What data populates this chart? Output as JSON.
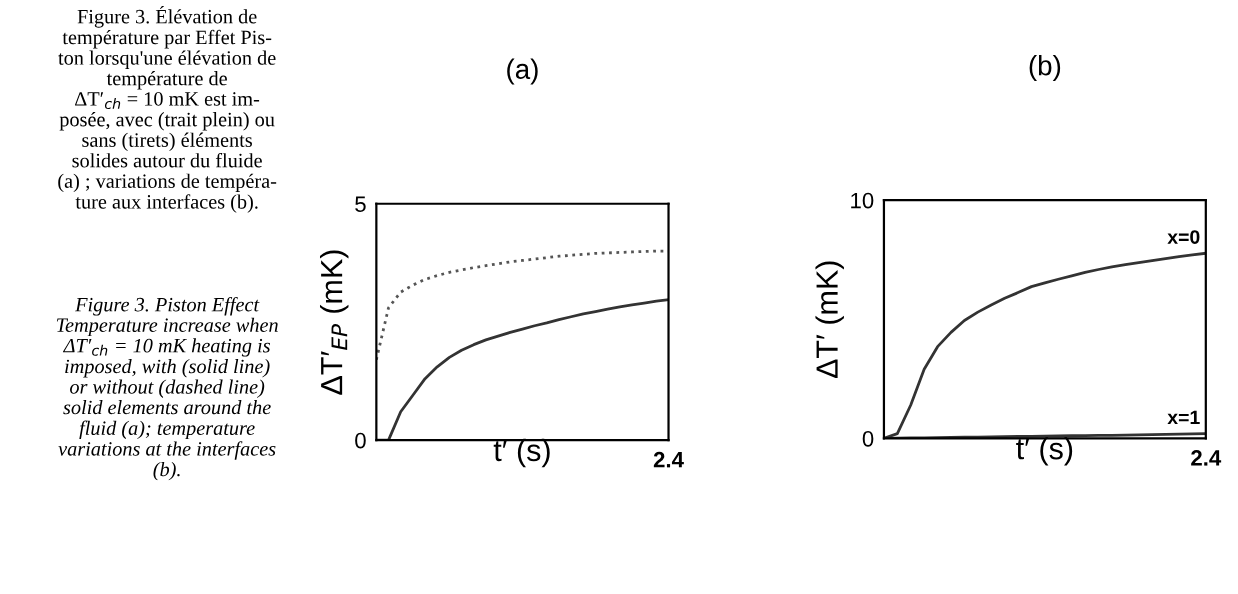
{
  "chart_data": [
    {
      "type": "line",
      "title": "(a)",
      "xlabel": "t′ (s)",
      "ylabel": "ΔT′$_{EP}$ (mK)",
      "categories": [
        null,
        null,
        null,
        null,
        null,
        null,
        null,
        null,
        null,
        null,
        null,
        null,
        null,
        null,
        null,
        null,
        null,
        null,
        null,
        null,
        null,
        null,
        null,
        null,
        null
      ],
      "ylim": [
        0,
        5
      ],
      "yticks": [
        0,
        5
      ],
      "grid": false,
      "legend": false,
      "series": [
        {
          "color": "#333333",
          "line_style": "solid",
          "values": [
            0,
            0,
            0.6,
            0.95,
            1.3,
            1.55,
            1.75,
            1.9,
            2.02,
            2.12,
            2.2,
            2.28,
            2.35,
            2.42,
            2.48,
            2.55,
            2.61,
            2.67,
            2.72,
            2.77,
            2.82,
            2.86,
            2.9,
            2.94,
            2.97
          ]
        },
        {
          "color": "#555555",
          "line_style": "dotted",
          "values": [
            1.7,
            2.8,
            3.13,
            3.28,
            3.4,
            3.48,
            3.55,
            3.6,
            3.65,
            3.69,
            3.73,
            3.77,
            3.8,
            3.83,
            3.86,
            3.89,
            3.91,
            3.93,
            3.95,
            3.96,
            3.97,
            3.98,
            3.99,
            4.0,
            4.0
          ]
        }
      ],
      "annotations": [
        "Figure 3. Élévation de\ntempérature par Effet Pis-\nton lorsqu'une élévation de\ntempérature de\nΔT′$_{ch}$ = 10 mK est im-\nposée, avec (trait plein) ou\nsans (tirets) éléments\nsolides autour du fluide\n(a) ; variations de tempéra-\nture aux interfaces (b).",
        "Figure 3. Piston Effect\nTemperature increase when\nΔT′$_{ch}$ = 10 mK heating is\nimposed, with (solid line)\nor without (dashed line)\nsolid elements around the\nfluid (a); temperature\nvariations at the interfaces\n(b).",
        "2.4"
      ]
    },
    {
      "type": "line",
      "title": "(b)",
      "xlabel": "t′ (s)",
      "ylabel": "ΔT′ (mK)",
      "categories": [
        null,
        null,
        null,
        null,
        null,
        null,
        null,
        null,
        null,
        null,
        null,
        null,
        null,
        null,
        null,
        null,
        null,
        null,
        null,
        null,
        null,
        null,
        null,
        null,
        null
      ],
      "ylim": [
        0,
        10
      ],
      "yticks": [
        0,
        10
      ],
      "grid": false,
      "legend": false,
      "series": [
        {
          "name": "x=0",
          "color": "#333333",
          "line_style": "solid",
          "values": [
            0,
            0.2,
            1.4,
            2.9,
            3.85,
            4.45,
            4.95,
            5.3,
            5.6,
            5.88,
            6.12,
            6.37,
            6.53,
            6.68,
            6.82,
            6.97,
            7.09,
            7.2,
            7.29,
            7.38,
            7.46,
            7.55,
            7.63,
            7.7,
            7.77
          ]
        },
        {
          "name": "x=1",
          "color": "#333333",
          "line_style": "solid",
          "values": [
            0,
            0.01,
            0.02,
            0.02,
            0.03,
            0.04,
            0.05,
            0.05,
            0.06,
            0.07,
            0.08,
            0.08,
            0.09,
            0.1,
            0.11,
            0.12,
            0.13,
            0.13,
            0.14,
            0.15,
            0.16,
            0.17,
            0.18,
            0.19,
            0.2
          ]
        }
      ],
      "annotations": [
        "2.4"
      ]
    }
  ]
}
